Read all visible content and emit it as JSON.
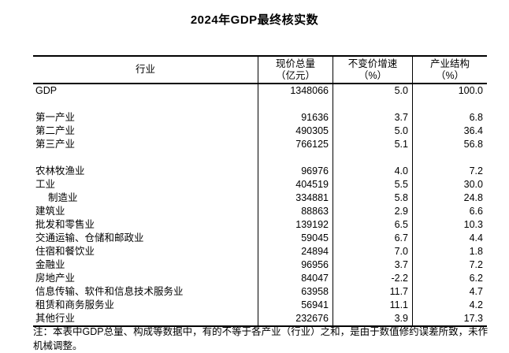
{
  "title": "2024年GDP最终核实数",
  "table": {
    "header": {
      "industry": "行业",
      "cols": [
        {
          "line1": "现价总量",
          "line2": "（亿元）"
        },
        {
          "line1": "不变价增速",
          "line2": "（%）"
        },
        {
          "line1": "产业结构",
          "line2": "（%）"
        }
      ]
    },
    "rows": [
      {
        "industry": "GDP",
        "total": "1348066",
        "growth": "5.0",
        "structure": "100.0"
      },
      {
        "industry": "",
        "total": "",
        "growth": "",
        "structure": ""
      },
      {
        "industry": "第一产业",
        "total": "91636",
        "growth": "3.7",
        "structure": "6.8"
      },
      {
        "industry": "第二产业",
        "total": "490305",
        "growth": "5.0",
        "structure": "36.4"
      },
      {
        "industry": "第三产业",
        "total": "766125",
        "growth": "5.1",
        "structure": "56.8"
      },
      {
        "industry": "",
        "total": "",
        "growth": "",
        "structure": ""
      },
      {
        "industry": "农林牧渔业",
        "total": "96976",
        "growth": "4.0",
        "structure": "7.2"
      },
      {
        "industry": "工业",
        "total": "404519",
        "growth": "5.5",
        "structure": "30.0"
      },
      {
        "industry": "制造业",
        "row_class": "indent",
        "total": "334881",
        "growth": "5.8",
        "structure": "24.8"
      },
      {
        "industry": "建筑业",
        "total": "88863",
        "growth": "2.9",
        "structure": "6.6"
      },
      {
        "industry": "批发和零售业",
        "total": "139192",
        "growth": "6.5",
        "structure": "10.3"
      },
      {
        "industry": "交通运输、仓储和邮政业",
        "total": "59045",
        "growth": "6.7",
        "structure": "4.4"
      },
      {
        "industry": "住宿和餐饮业",
        "total": "24894",
        "growth": "7.0",
        "structure": "1.8"
      },
      {
        "industry": "金融业",
        "total": "96956",
        "growth": "3.7",
        "structure": "7.2"
      },
      {
        "industry": "房地产业",
        "total": "84047",
        "growth": "-2.2",
        "structure": "6.2"
      },
      {
        "industry": "信息传输、软件和信息技术服务业",
        "total": "63958",
        "growth": "11.7",
        "structure": "4.7"
      },
      {
        "industry": "租赁和商务服务业",
        "total": "56941",
        "growth": "11.1",
        "structure": "4.2"
      },
      {
        "industry": "其他行业",
        "total": "232676",
        "growth": "3.9",
        "structure": "17.3"
      }
    ]
  },
  "note": "注：本表中GDP总量、构成等数据中，有的不等于各产业（行业）之和，是由于数值修约误差所致，未作机械调整。"
}
